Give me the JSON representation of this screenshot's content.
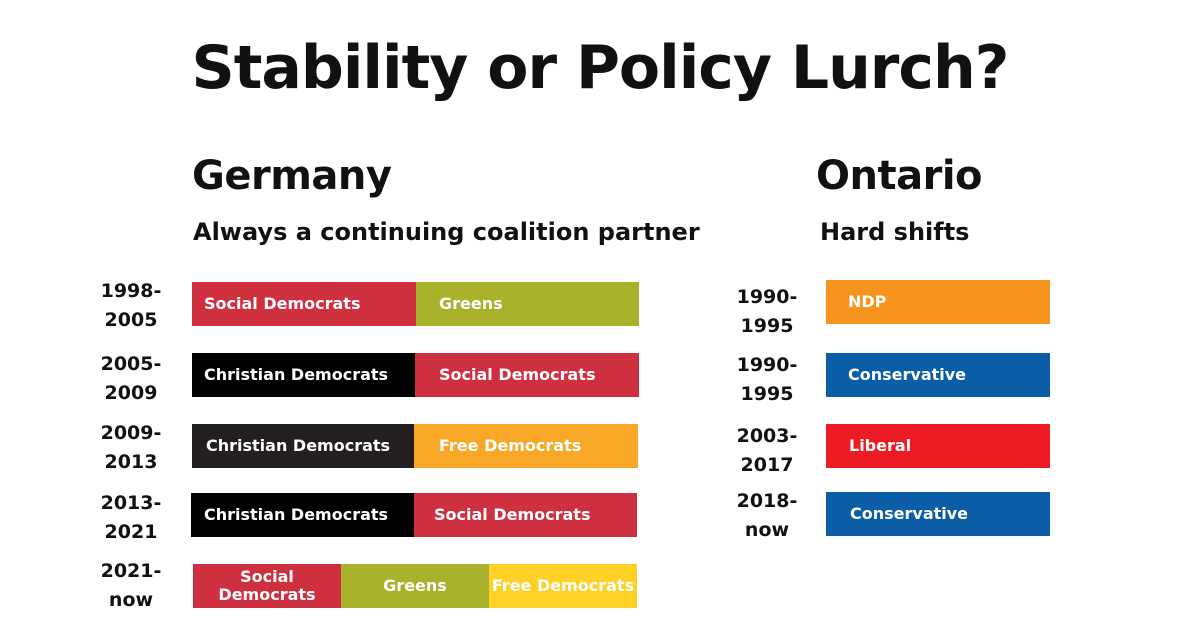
{
  "title": "Stability or Policy Lurch?",
  "germany": {
    "heading": "Germany",
    "subheading": "Always a continuing coalition partner",
    "rows": [
      {
        "years": [
          "1998-",
          "2005"
        ],
        "segments": [
          "Social Democrats",
          "Greens"
        ]
      },
      {
        "years": [
          "2005-",
          "2009"
        ],
        "segments": [
          "Christian Democrats",
          "Social Democrats"
        ]
      },
      {
        "years": [
          "2009-",
          "2013"
        ],
        "segments": [
          "Christian Democrats",
          "Free Democrats"
        ]
      },
      {
        "years": [
          "2013-",
          "2021"
        ],
        "segments": [
          "Christian Democrats",
          "Social Democrats"
        ]
      },
      {
        "years": [
          "2021-",
          "now"
        ],
        "segments": [
          "Social Democrats",
          "Greens",
          "Free Democrats"
        ]
      }
    ]
  },
  "ontario": {
    "heading": "Ontario",
    "subheading": "Hard shifts",
    "rows": [
      {
        "years": [
          "1990-",
          "1995"
        ],
        "party": "NDP"
      },
      {
        "years": [
          "1990-",
          "1995"
        ],
        "party": "Conservative"
      },
      {
        "years": [
          "2003-",
          "2017"
        ],
        "party": "Liberal"
      },
      {
        "years": [
          "2018-",
          "now"
        ],
        "party": "Conservative"
      }
    ]
  },
  "colors": {
    "social_democrats": "#cf3040",
    "greens": "#aab22c",
    "christian_democrats": "#000000",
    "free_democrats": "#f8a726",
    "free_democrats_2021": "#fdd125",
    "ndp": "#f7941d",
    "conservative": "#0b5ea6",
    "liberal": "#ed1c24"
  }
}
